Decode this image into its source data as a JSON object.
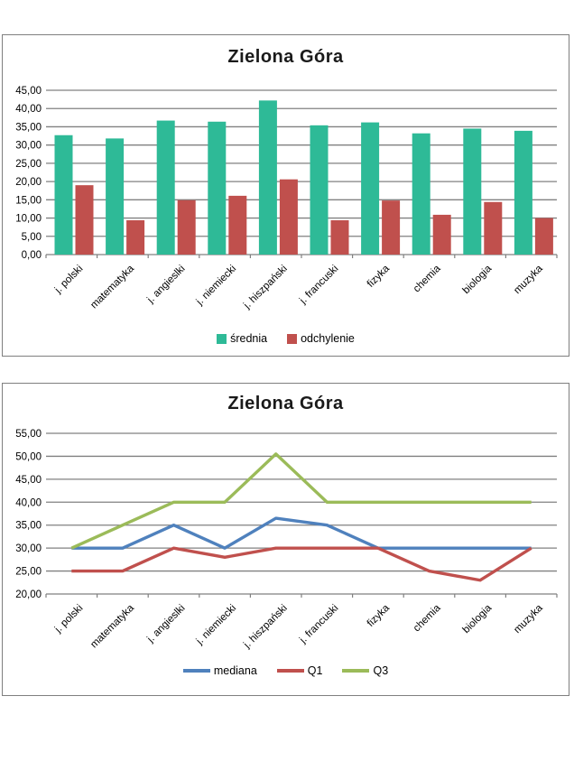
{
  "chart_data": [
    {
      "type": "bar",
      "title": "Zielona Góra",
      "categories": [
        "j. polski",
        "matematyka",
        "j. angieslki",
        "j. niemiecki",
        "j. hiszpański",
        "j. francuski",
        "fizyka",
        "chemia",
        "biologia",
        "muzyka"
      ],
      "series": [
        {
          "name": "średnia",
          "color": "#2EBA97",
          "values": [
            32.7,
            31.8,
            36.7,
            36.4,
            42.2,
            35.4,
            36.2,
            33.2,
            34.5,
            33.9
          ]
        },
        {
          "name": "odchylenie",
          "color": "#C0504D",
          "values": [
            19.0,
            9.4,
            14.9,
            16.1,
            20.6,
            9.4,
            14.8,
            10.9,
            14.4,
            10.0
          ]
        }
      ],
      "xlabel": "",
      "ylabel": "",
      "ylim": [
        0,
        45
      ],
      "ytick_step": 5,
      "ytick_labels": [
        "0,00",
        "5,00",
        "10,00",
        "15,00",
        "20,00",
        "25,00",
        "30,00",
        "35,00",
        "40,00",
        "45,00"
      ],
      "grid": true,
      "legend_position": "bottom"
    },
    {
      "type": "line",
      "title": "Zielona Góra",
      "categories": [
        "j. polski",
        "matematyka",
        "j. angieslki",
        "j. niemiecki",
        "j. hiszpański",
        "j. francuski",
        "fizyka",
        "chemia",
        "biologia",
        "muzyka"
      ],
      "series": [
        {
          "name": "mediana",
          "color": "#4F81BD",
          "values": [
            30,
            30,
            35,
            30,
            36.5,
            35,
            30,
            30,
            30,
            30
          ]
        },
        {
          "name": "Q1",
          "color": "#C0504D",
          "values": [
            25,
            25,
            30,
            28,
            30,
            30,
            30,
            25,
            23,
            30
          ]
        },
        {
          "name": "Q3",
          "color": "#9BBB59",
          "values": [
            30,
            35,
            40,
            40,
            50.5,
            40,
            40,
            40,
            40,
            40
          ]
        }
      ],
      "xlabel": "",
      "ylabel": "",
      "ylim": [
        20,
        55
      ],
      "ytick_step": 5,
      "ytick_labels": [
        "20,00",
        "25,00",
        "30,00",
        "35,00",
        "40,00",
        "45,00",
        "50,00",
        "55,00"
      ],
      "grid": true,
      "legend_position": "bottom"
    }
  ],
  "colors": {
    "gridline": "#808080",
    "frame_border": "#7F7F7F",
    "background": "#FFFFFF",
    "text": "#000000",
    "title": "#1A1A1A"
  }
}
